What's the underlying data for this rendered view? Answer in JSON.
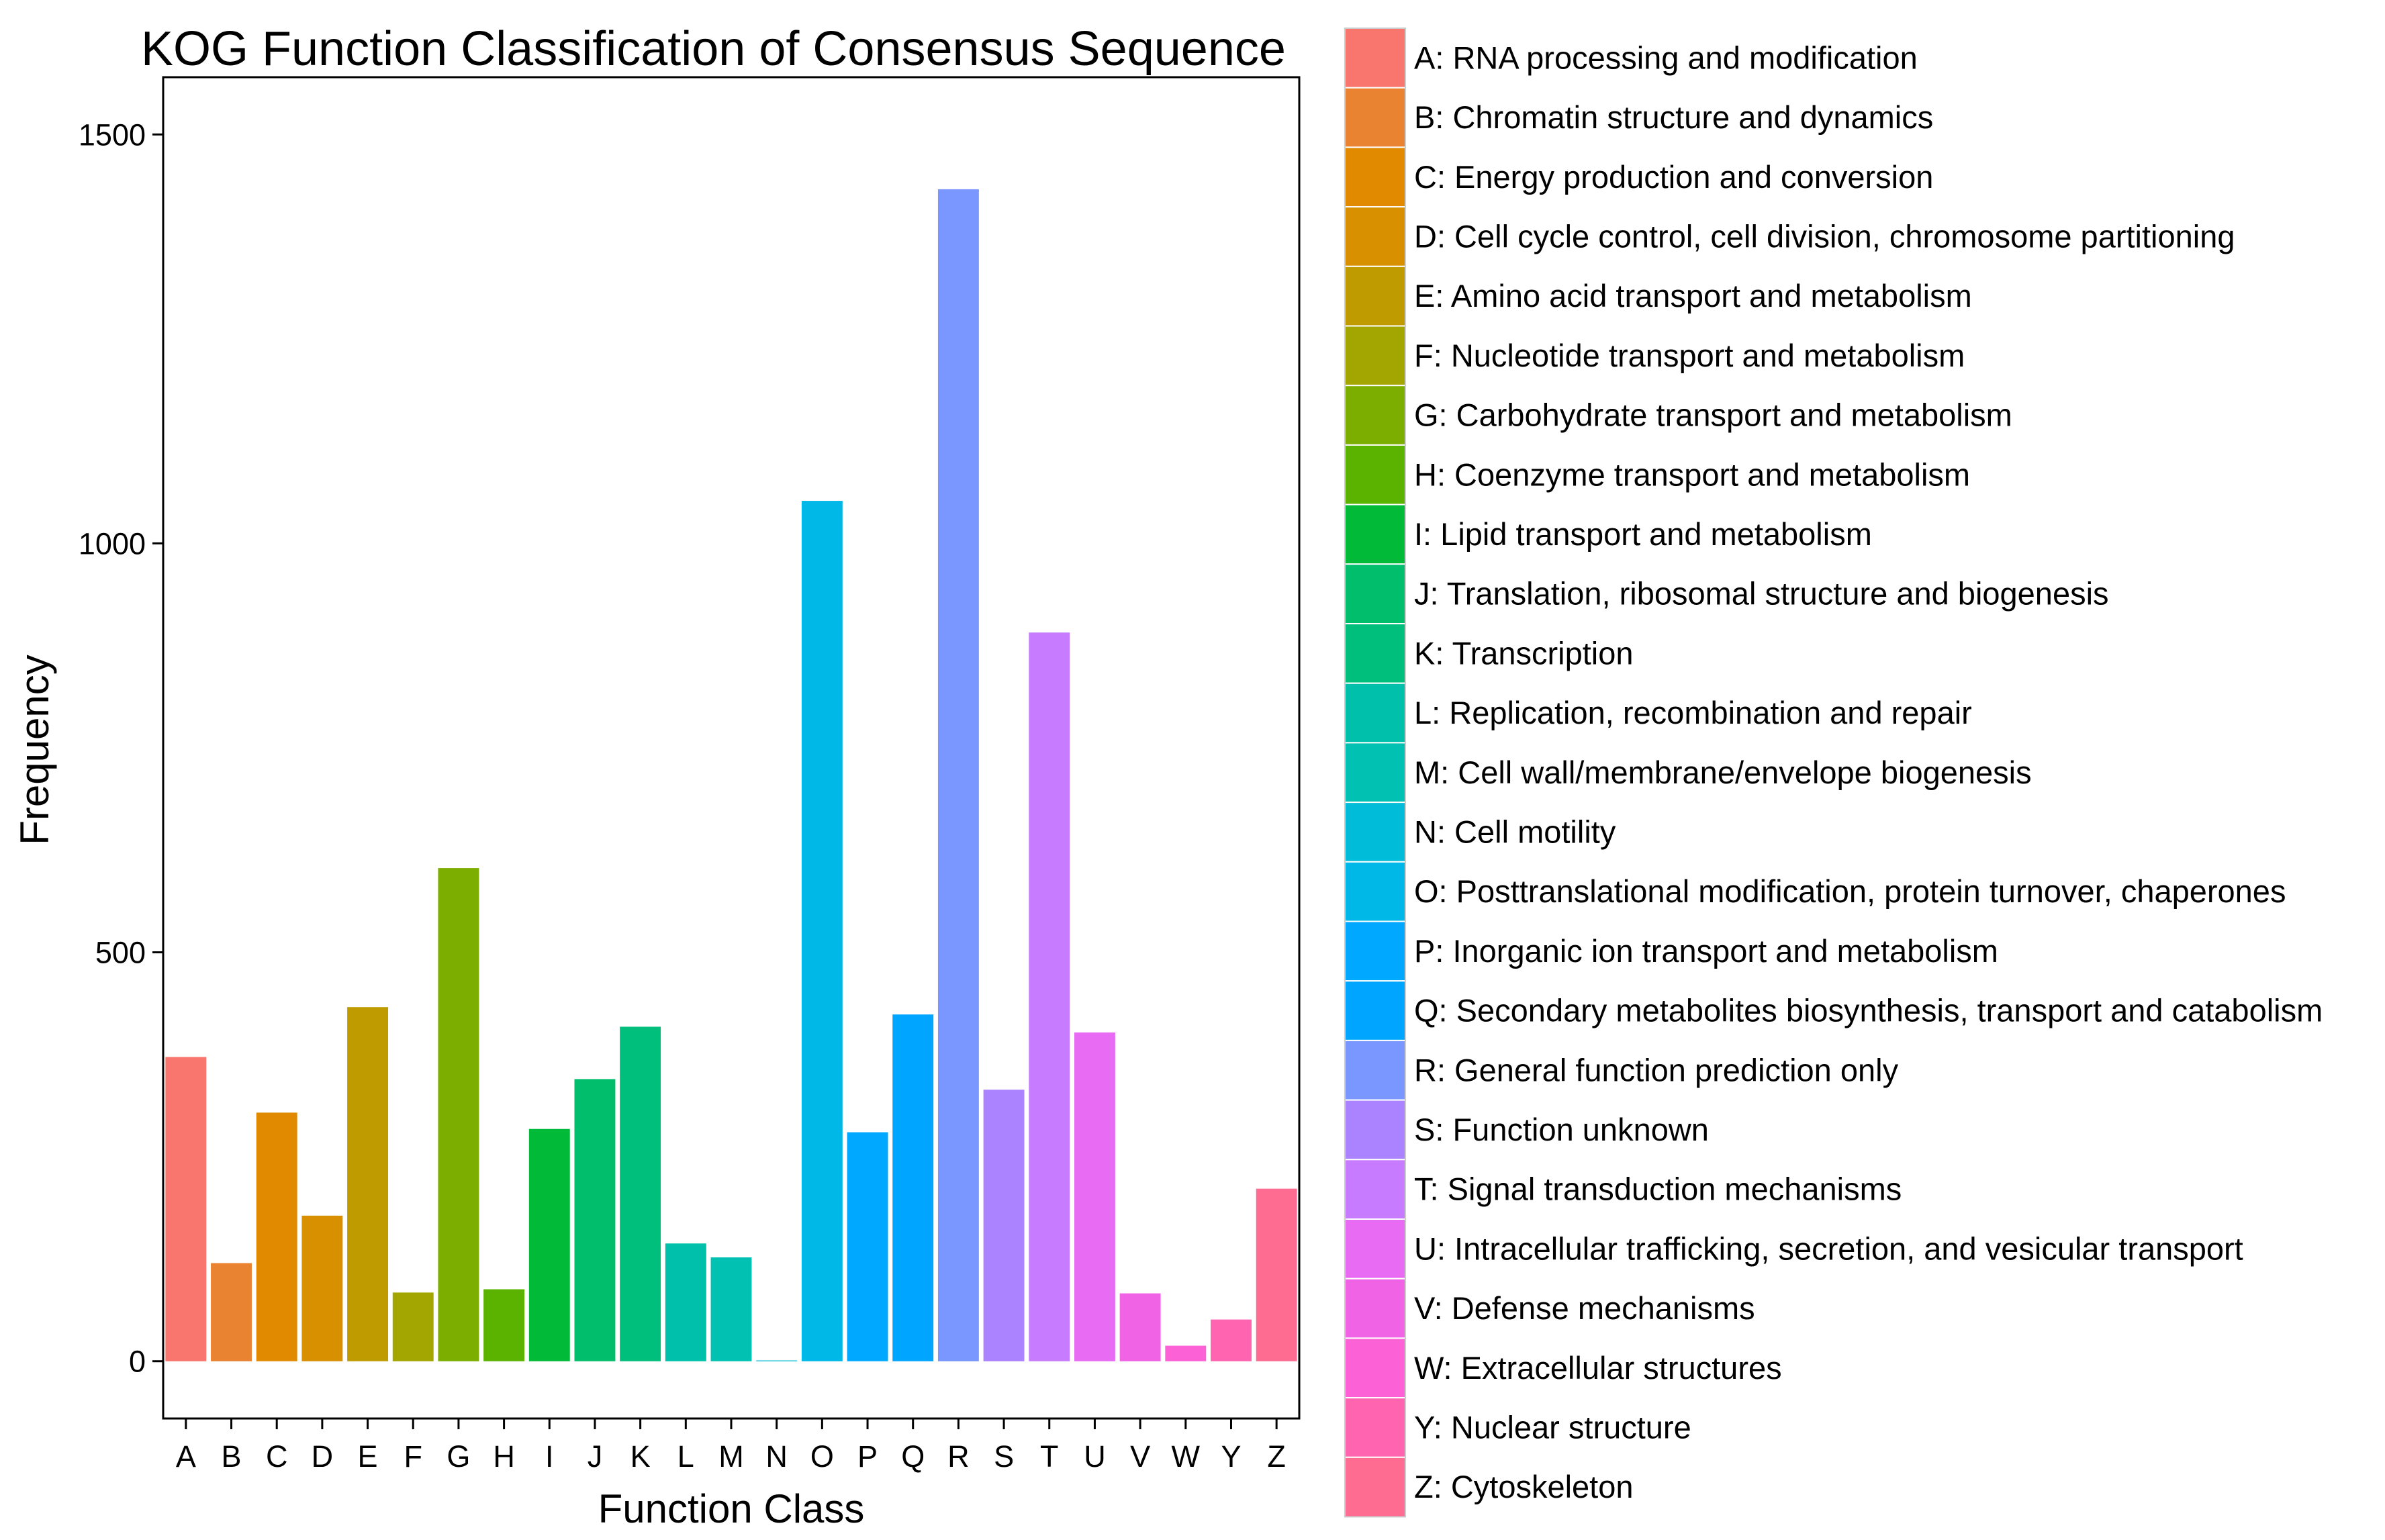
{
  "chart_data": {
    "type": "bar",
    "title": "KOG Function Classification of Consensus Sequence",
    "xlabel": "Function Class",
    "ylabel": "Frequency",
    "ylim": [
      -70,
      1570
    ],
    "yticks": [
      0,
      500,
      1000,
      1500
    ],
    "grid": false,
    "legend_position": "right",
    "categories": [
      "A",
      "B",
      "C",
      "D",
      "E",
      "F",
      "G",
      "H",
      "I",
      "J",
      "K",
      "L",
      "M",
      "N",
      "O",
      "P",
      "Q",
      "R",
      "S",
      "T",
      "U",
      "V",
      "W",
      "Y",
      "Z"
    ],
    "values": [
      372,
      120,
      304,
      178,
      433,
      84,
      603,
      88,
      284,
      345,
      409,
      144,
      127,
      1,
      1052,
      280,
      424,
      1433,
      332,
      891,
      402,
      83,
      19,
      51,
      211
    ],
    "colors": [
      "#F8766D",
      "#EA8331",
      "#E18A00",
      "#D89000",
      "#C09B00",
      "#A3A500",
      "#7CAE00",
      "#5BB300",
      "#00BA38",
      "#00BE6B",
      "#00BF7D",
      "#00C0AB",
      "#00C1B2",
      "#00BCD8",
      "#00B8E7",
      "#00A9FF",
      "#00A5FF",
      "#7997FF",
      "#AB82FF",
      "#C77CFF",
      "#E76BF3",
      "#F063E5",
      "#FC61D5",
      "#FF64B0",
      "#FF6C91"
    ],
    "legend": [
      "A: RNA processing and modification",
      "B: Chromatin structure and dynamics",
      "C: Energy production and conversion",
      "D: Cell cycle control, cell division, chromosome partitioning",
      "E: Amino acid transport and metabolism",
      "F: Nucleotide transport and metabolism",
      "G: Carbohydrate transport and metabolism",
      "H: Coenzyme transport and metabolism",
      "I: Lipid transport and metabolism",
      "J: Translation, ribosomal structure and biogenesis",
      "K: Transcription",
      "L: Replication, recombination and repair",
      "M: Cell wall/membrane/envelope biogenesis",
      "N: Cell motility",
      "O: Posttranslational modification, protein turnover, chaperones",
      "P: Inorganic ion transport and metabolism",
      "Q: Secondary metabolites biosynthesis, transport and catabolism",
      "R: General function prediction only",
      "S: Function unknown",
      "T: Signal transduction mechanisms",
      "U: Intracellular trafficking, secretion, and vesicular transport",
      "V: Defense mechanisms",
      "W: Extracellular structures",
      "Y: Nuclear structure",
      "Z: Cytoskeleton"
    ]
  }
}
